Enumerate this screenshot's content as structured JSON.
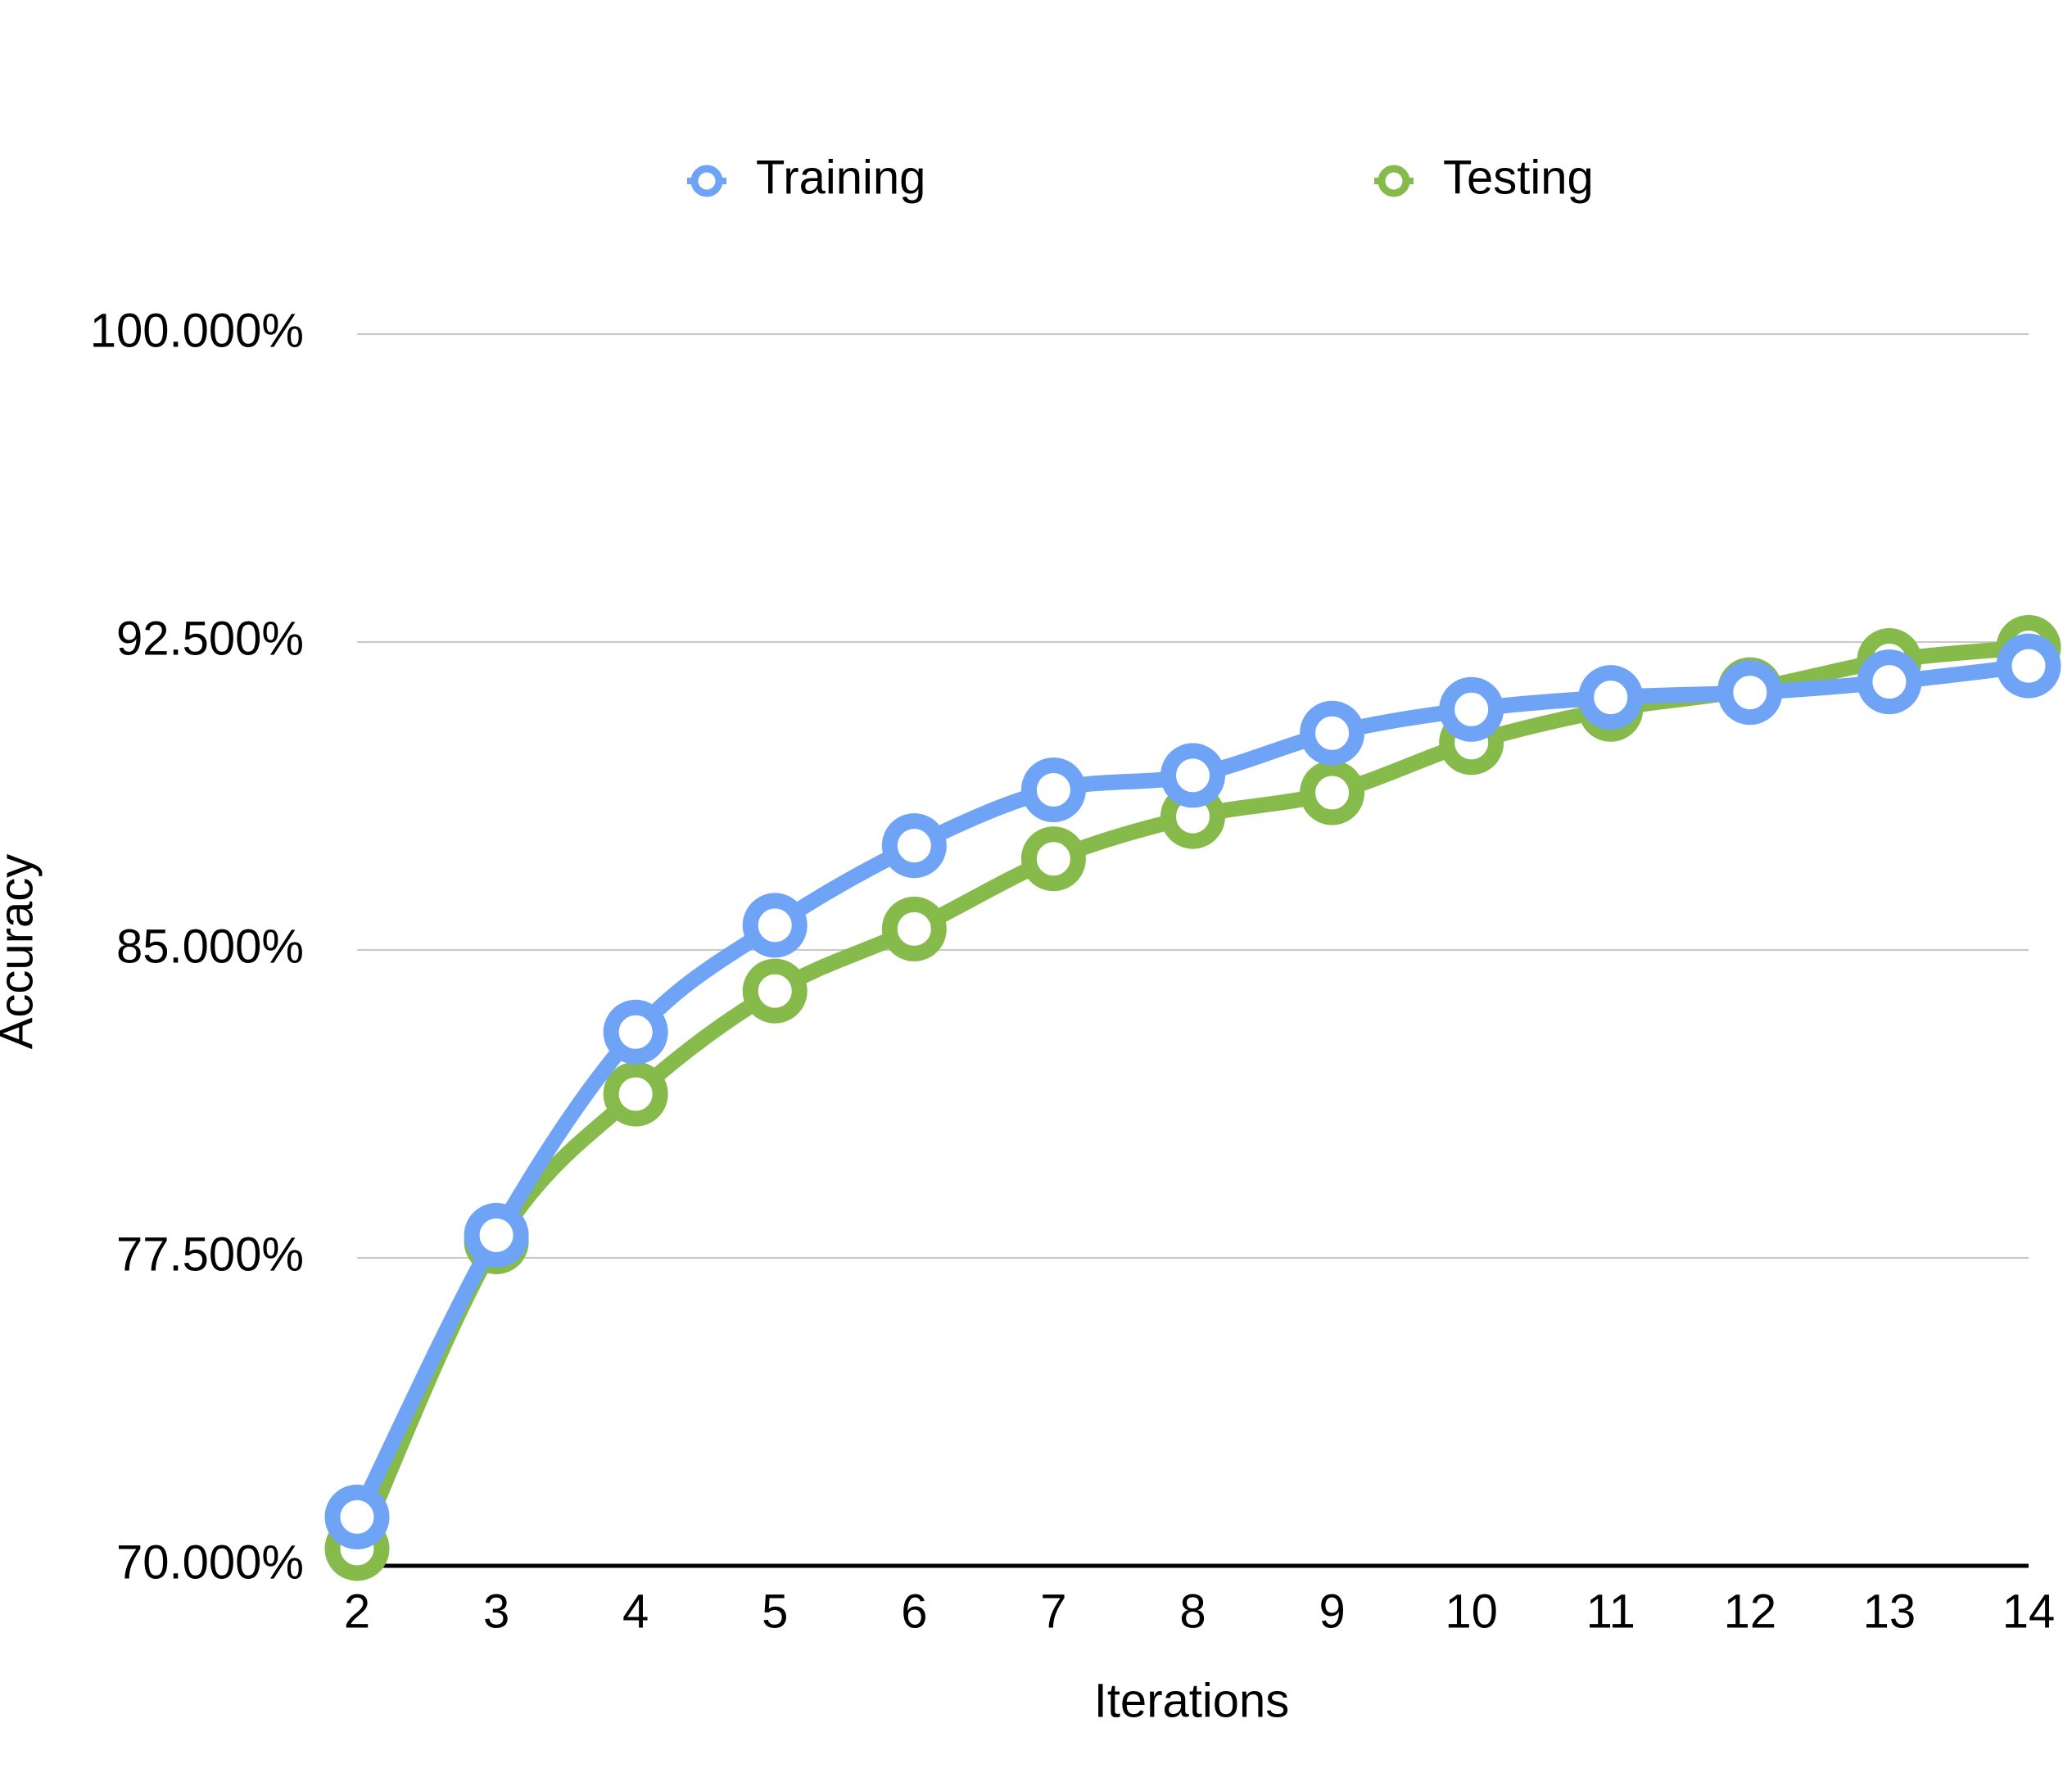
{
  "chart_data": {
    "type": "line",
    "x_label": "Iterations",
    "y_label": "Accuracy",
    "categories": [
      "2",
      "3",
      "4",
      "5",
      "6",
      "7",
      "8",
      "9",
      "10",
      "11",
      "12",
      "13",
      "14"
    ],
    "series": [
      {
        "name": "Training",
        "color": "#6fa3f5",
        "values": [
          71.19,
          78.05,
          83.0,
          85.6,
          87.54,
          88.9,
          89.25,
          90.28,
          90.86,
          91.15,
          91.27,
          91.53,
          91.92
        ]
      },
      {
        "name": "Testing",
        "color": "#86bb4b",
        "values": [
          70.42,
          77.89,
          81.49,
          84.0,
          85.51,
          87.22,
          88.25,
          88.83,
          90.05,
          90.86,
          91.34,
          92.05,
          92.37
        ]
      }
    ],
    "ylim": [
      70,
      100
    ],
    "yticks": [
      {
        "value": 70,
        "label": "70.000%"
      },
      {
        "value": 77.5,
        "label": "77.500%"
      },
      {
        "value": 85,
        "label": "85.000%"
      },
      {
        "value": 92.5,
        "label": "92.500%"
      },
      {
        "value": 100,
        "label": "100.000%"
      }
    ],
    "grid": true,
    "legend": "top"
  }
}
